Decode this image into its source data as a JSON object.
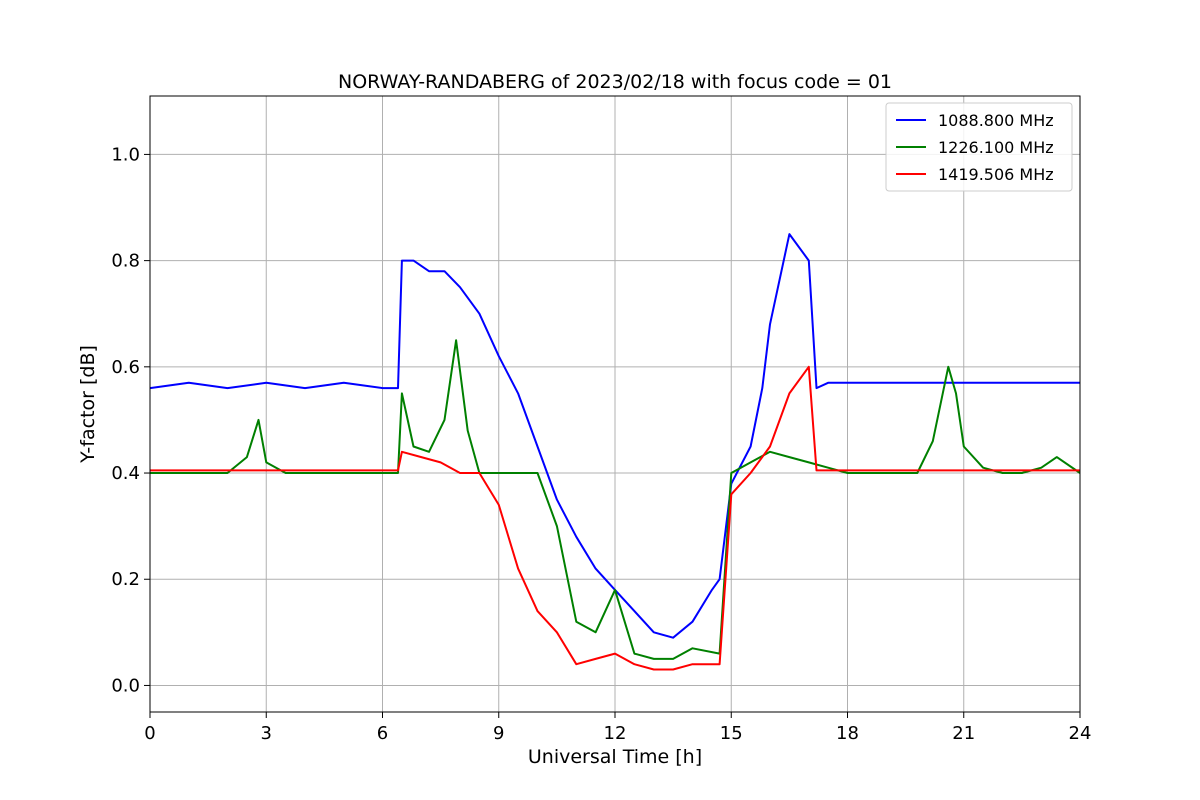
{
  "chart_data": {
    "type": "line",
    "title": "NORWAY-RANDABERG of 2023/02/18 with focus code = 01",
    "xlabel": "Universal Time [h]",
    "ylabel": "Y-factor [dB]",
    "xlim": [
      0,
      24
    ],
    "ylim": [
      -0.05,
      1.11
    ],
    "xticks": [
      0,
      3,
      6,
      9,
      12,
      15,
      18,
      21,
      24
    ],
    "yticks": [
      0.0,
      0.2,
      0.4,
      0.6,
      0.8,
      1.0
    ],
    "ytick_labels": [
      "0.0",
      "0.2",
      "0.4",
      "0.6",
      "0.8",
      "1.0"
    ],
    "grid": true,
    "legend_position": "top-right",
    "series": [
      {
        "name": "1088.800 MHz",
        "color": "#0000ff",
        "x": [
          0,
          1,
          2,
          3,
          4,
          5,
          6,
          6.4,
          6.5,
          6.8,
          7.2,
          7.6,
          8.0,
          8.5,
          9.0,
          9.5,
          10.0,
          10.5,
          11.0,
          11.5,
          12.0,
          12.5,
          13.0,
          13.5,
          14.0,
          14.5,
          14.7,
          15.0,
          15.5,
          15.8,
          16.0,
          16.5,
          17.0,
          17.2,
          17.5,
          18,
          19,
          20,
          21,
          22,
          23,
          24
        ],
        "y": [
          0.56,
          0.57,
          0.56,
          0.57,
          0.56,
          0.57,
          0.56,
          0.56,
          0.8,
          0.8,
          0.78,
          0.78,
          0.75,
          0.7,
          0.62,
          0.55,
          0.45,
          0.35,
          0.28,
          0.22,
          0.18,
          0.14,
          0.1,
          0.09,
          0.12,
          0.18,
          0.2,
          0.38,
          0.45,
          0.56,
          0.68,
          0.85,
          0.8,
          0.56,
          0.57,
          0.57,
          0.57,
          0.57,
          0.57,
          0.57,
          0.57,
          0.57
        ]
      },
      {
        "name": "1226.100 MHz",
        "color": "#008000",
        "x": [
          0,
          1,
          2,
          2.5,
          2.8,
          3.0,
          3.5,
          4,
          5,
          6,
          6.4,
          6.5,
          6.8,
          7.2,
          7.6,
          7.9,
          8.2,
          8.5,
          9.0,
          9.5,
          10.0,
          10.5,
          11.0,
          11.5,
          12.0,
          12.5,
          13.0,
          13.5,
          14.0,
          14.7,
          15.0,
          15.5,
          16.0,
          16.5,
          17.0,
          17.5,
          18,
          18.5,
          19,
          19.8,
          20.2,
          20.6,
          20.8,
          21.0,
          21.5,
          22,
          22.5,
          23,
          23.4,
          24
        ],
        "y": [
          0.4,
          0.4,
          0.4,
          0.43,
          0.5,
          0.42,
          0.4,
          0.4,
          0.4,
          0.4,
          0.4,
          0.55,
          0.45,
          0.44,
          0.5,
          0.65,
          0.48,
          0.4,
          0.4,
          0.4,
          0.4,
          0.3,
          0.12,
          0.1,
          0.18,
          0.06,
          0.05,
          0.05,
          0.07,
          0.06,
          0.4,
          0.42,
          0.44,
          0.43,
          0.42,
          0.41,
          0.4,
          0.4,
          0.4,
          0.4,
          0.46,
          0.6,
          0.55,
          0.45,
          0.41,
          0.4,
          0.4,
          0.41,
          0.43,
          0.4
        ]
      },
      {
        "name": "1419.506 MHz",
        "color": "#ff0000",
        "x": [
          0,
          1,
          2,
          3,
          4,
          5,
          6,
          6.4,
          6.5,
          7.0,
          7.5,
          8.0,
          8.5,
          9.0,
          9.5,
          10.0,
          10.5,
          11.0,
          11.5,
          12.0,
          12.5,
          13.0,
          13.5,
          14.0,
          14.7,
          15.0,
          15.5,
          16.0,
          16.5,
          17.0,
          17.2,
          17.5,
          18,
          19,
          20,
          21,
          22,
          23,
          24
        ],
        "y": [
          0.405,
          0.405,
          0.405,
          0.405,
          0.405,
          0.405,
          0.405,
          0.405,
          0.44,
          0.43,
          0.42,
          0.4,
          0.4,
          0.34,
          0.22,
          0.14,
          0.1,
          0.04,
          0.05,
          0.06,
          0.04,
          0.03,
          0.03,
          0.04,
          0.04,
          0.36,
          0.4,
          0.45,
          0.55,
          0.6,
          0.405,
          0.405,
          0.405,
          0.405,
          0.405,
          0.405,
          0.405,
          0.405,
          0.405
        ]
      }
    ]
  }
}
